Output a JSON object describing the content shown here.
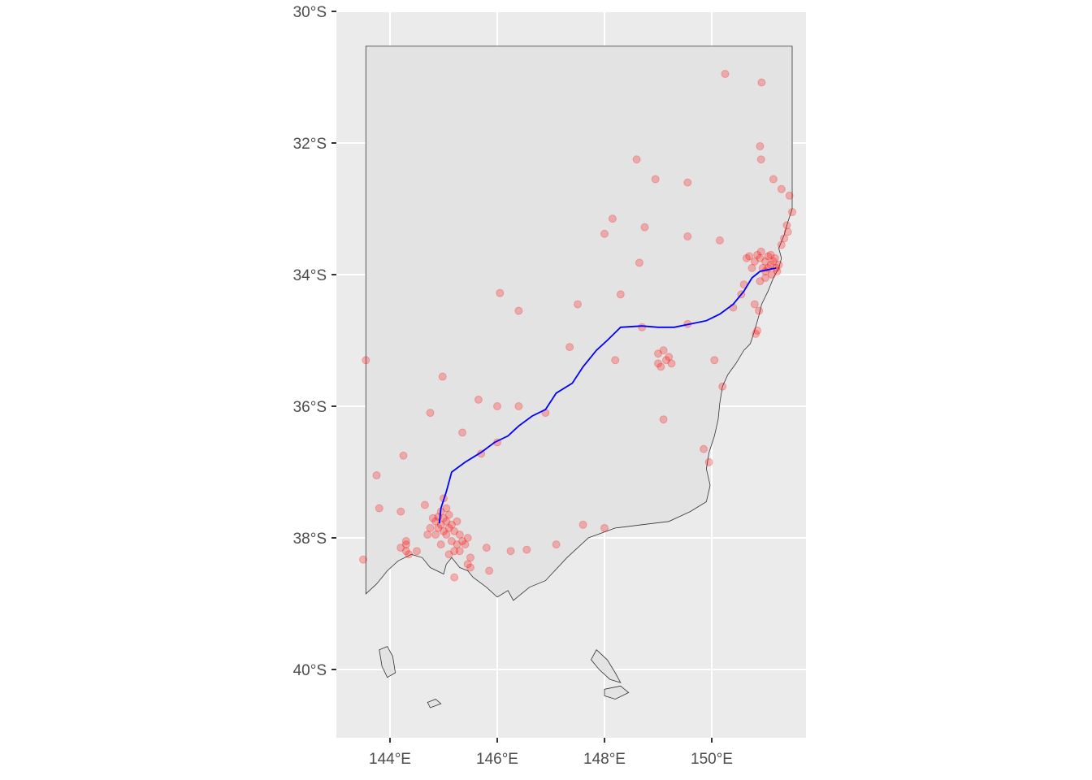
{
  "chart_data": {
    "type": "map",
    "title": "",
    "xlabel": "",
    "ylabel": "",
    "colors": {
      "panel_background": "#ebebeb",
      "state_fill": "#e3e3e3",
      "state_outline": "#333333",
      "gridline": "#ffffff",
      "points": "#ff0000",
      "route": "#0000ff"
    },
    "point_alpha": 0.25,
    "xlim": [
      143.2,
      152.0
    ],
    "ylim": [
      -41.3,
      -30.0
    ],
    "lon_ticks": [
      {
        "value": 144,
        "label": "144°E"
      },
      {
        "value": 146,
        "label": "146°E"
      },
      {
        "value": 148,
        "label": "148°E"
      },
      {
        "value": 150,
        "label": "150°E"
      }
    ],
    "lat_ticks": [
      {
        "value": -30,
        "label": "30°S"
      },
      {
        "value": -32,
        "label": "32°S"
      },
      {
        "value": -34,
        "label": "34°S"
      },
      {
        "value": -36,
        "label": "36°S"
      },
      {
        "value": -38,
        "label": "38°S"
      },
      {
        "value": -40,
        "label": "40°S"
      }
    ],
    "region_outline": [
      [
        143.55,
        -30.53
      ],
      [
        151.5,
        -30.53
      ],
      [
        151.5,
        -33.0
      ],
      [
        151.42,
        -33.2
      ],
      [
        151.35,
        -33.4
      ],
      [
        151.25,
        -33.6
      ],
      [
        151.3,
        -33.75
      ],
      [
        151.25,
        -33.9
      ],
      [
        151.15,
        -34.05
      ],
      [
        151.05,
        -34.25
      ],
      [
        150.93,
        -34.45
      ],
      [
        150.88,
        -34.62
      ],
      [
        150.8,
        -34.85
      ],
      [
        150.72,
        -35.05
      ],
      [
        150.6,
        -35.15
      ],
      [
        150.45,
        -35.35
      ],
      [
        150.3,
        -35.52
      ],
      [
        150.2,
        -35.7
      ],
      [
        150.15,
        -35.95
      ],
      [
        150.12,
        -36.2
      ],
      [
        150.05,
        -36.45
      ],
      [
        149.95,
        -36.7
      ],
      [
        149.9,
        -36.95
      ],
      [
        149.97,
        -37.2
      ],
      [
        149.9,
        -37.45
      ],
      [
        149.6,
        -37.6
      ],
      [
        149.2,
        -37.75
      ],
      [
        148.7,
        -37.8
      ],
      [
        148.2,
        -37.85
      ],
      [
        147.7,
        -38.0
      ],
      [
        147.3,
        -38.3
      ],
      [
        146.9,
        -38.65
      ],
      [
        146.6,
        -38.75
      ],
      [
        146.45,
        -38.85
      ],
      [
        146.3,
        -38.95
      ],
      [
        146.2,
        -38.8
      ],
      [
        146.0,
        -38.9
      ],
      [
        145.8,
        -38.75
      ],
      [
        145.55,
        -38.6
      ],
      [
        145.45,
        -38.5
      ],
      [
        145.3,
        -38.45
      ],
      [
        145.15,
        -38.3
      ],
      [
        145.05,
        -38.4
      ],
      [
        145.0,
        -38.55
      ],
      [
        144.75,
        -38.45
      ],
      [
        144.6,
        -38.3
      ],
      [
        144.4,
        -38.25
      ],
      [
        144.15,
        -38.35
      ],
      [
        143.95,
        -38.5
      ],
      [
        143.75,
        -38.7
      ],
      [
        143.55,
        -38.85
      ],
      [
        143.55,
        -30.53
      ]
    ],
    "islands": [
      [
        [
          143.8,
          -39.7
        ],
        [
          143.95,
          -39.65
        ],
        [
          144.05,
          -39.8
        ],
        [
          144.1,
          -40.05
        ],
        [
          143.95,
          -40.12
        ],
        [
          143.85,
          -39.95
        ],
        [
          143.8,
          -39.7
        ]
      ],
      [
        [
          147.85,
          -39.7
        ],
        [
          148.05,
          -39.85
        ],
        [
          148.2,
          -40.05
        ],
        [
          148.3,
          -40.2
        ],
        [
          148.1,
          -40.15
        ],
        [
          147.9,
          -40.0
        ],
        [
          147.75,
          -39.85
        ],
        [
          147.85,
          -39.7
        ]
      ],
      [
        [
          148.0,
          -40.3
        ],
        [
          148.3,
          -40.25
        ],
        [
          148.45,
          -40.35
        ],
        [
          148.2,
          -40.45
        ],
        [
          148.0,
          -40.4
        ],
        [
          148.0,
          -40.3
        ]
      ],
      [
        [
          144.7,
          -40.5
        ],
        [
          144.85,
          -40.45
        ],
        [
          144.95,
          -40.52
        ],
        [
          144.75,
          -40.58
        ],
        [
          144.7,
          -40.5
        ]
      ]
    ],
    "route": [
      [
        144.92,
        -37.78
      ],
      [
        144.95,
        -37.55
      ],
      [
        145.05,
        -37.3
      ],
      [
        145.15,
        -37.0
      ],
      [
        145.4,
        -36.85
      ],
      [
        145.7,
        -36.7
      ],
      [
        145.95,
        -36.55
      ],
      [
        146.2,
        -36.45
      ],
      [
        146.4,
        -36.3
      ],
      [
        146.65,
        -36.15
      ],
      [
        146.9,
        -36.05
      ],
      [
        147.1,
        -35.8
      ],
      [
        147.4,
        -35.65
      ],
      [
        147.6,
        -35.4
      ],
      [
        147.85,
        -35.15
      ],
      [
        148.05,
        -35.0
      ],
      [
        148.3,
        -34.8
      ],
      [
        148.7,
        -34.78
      ],
      [
        149.0,
        -34.8
      ],
      [
        149.3,
        -34.8
      ],
      [
        149.6,
        -34.75
      ],
      [
        149.9,
        -34.7
      ],
      [
        150.15,
        -34.6
      ],
      [
        150.4,
        -34.45
      ],
      [
        150.6,
        -34.25
      ],
      [
        150.75,
        -34.05
      ],
      [
        150.9,
        -33.95
      ],
      [
        151.2,
        -33.9
      ]
    ],
    "points": [
      [
        150.25,
        -30.95
      ],
      [
        150.93,
        -31.08
      ],
      [
        150.9,
        -32.05
      ],
      [
        150.92,
        -32.25
      ],
      [
        151.15,
        -32.55
      ],
      [
        151.3,
        -32.7
      ],
      [
        151.45,
        -32.8
      ],
      [
        148.6,
        -32.25
      ],
      [
        148.95,
        -32.55
      ],
      [
        149.55,
        -32.6
      ],
      [
        148.15,
        -33.15
      ],
      [
        148.0,
        -33.38
      ],
      [
        148.75,
        -33.28
      ],
      [
        149.55,
        -33.42
      ],
      [
        150.15,
        -33.48
      ],
      [
        148.65,
        -33.82
      ],
      [
        148.3,
        -34.3
      ],
      [
        147.5,
        -34.45
      ],
      [
        146.05,
        -34.28
      ],
      [
        146.4,
        -34.55
      ],
      [
        143.55,
        -35.3
      ],
      [
        144.98,
        -35.55
      ],
      [
        145.65,
        -35.9
      ],
      [
        146.0,
        -36.0
      ],
      [
        146.4,
        -36.0
      ],
      [
        147.35,
        -35.1
      ],
      [
        148.2,
        -35.3
      ],
      [
        148.7,
        -34.8
      ],
      [
        149.55,
        -34.75
      ],
      [
        150.4,
        -34.5
      ],
      [
        150.2,
        -35.7
      ],
      [
        150.05,
        -35.3
      ],
      [
        149.1,
        -36.2
      ],
      [
        149.85,
        -36.65
      ],
      [
        149.95,
        -36.85
      ],
      [
        144.75,
        -36.1
      ],
      [
        145.35,
        -36.4
      ],
      [
        145.7,
        -36.72
      ],
      [
        146.0,
        -36.55
      ],
      [
        146.9,
        -36.1
      ],
      [
        144.25,
        -36.75
      ],
      [
        143.75,
        -37.05
      ],
      [
        143.8,
        -37.55
      ],
      [
        144.2,
        -37.6
      ],
      [
        144.65,
        -37.5
      ],
      [
        147.6,
        -37.8
      ],
      [
        148.0,
        -37.85
      ],
      [
        145.8,
        -38.15
      ],
      [
        146.25,
        -38.2
      ],
      [
        146.55,
        -38.18
      ],
      [
        147.1,
        -38.1
      ],
      [
        145.85,
        -38.5
      ],
      [
        143.5,
        -38.33
      ],
      [
        144.3,
        -38.1
      ],
      [
        144.3,
        -38.2
      ],
      [
        145.5,
        -38.45
      ],
      [
        145.2,
        -38.6
      ],
      [
        149.0,
        -35.2
      ],
      [
        149.15,
        -35.3
      ],
      [
        149.05,
        -35.4
      ],
      [
        149.2,
        -35.25
      ],
      [
        149.1,
        -35.15
      ],
      [
        149.0,
        -35.35
      ],
      [
        149.25,
        -35.35
      ],
      [
        150.8,
        -34.45
      ],
      [
        150.88,
        -34.55
      ],
      [
        150.85,
        -34.85
      ],
      [
        150.82,
        -34.9
      ],
      [
        151.5,
        -33.05
      ],
      [
        151.4,
        -33.25
      ],
      [
        151.35,
        -33.45
      ],
      [
        151.42,
        -33.35
      ],
      [
        151.3,
        -33.55
      ],
      [
        150.7,
        -33.72
      ],
      [
        150.8,
        -33.8
      ],
      [
        150.9,
        -33.75
      ],
      [
        151.0,
        -33.8
      ],
      [
        151.05,
        -33.72
      ],
      [
        151.1,
        -33.85
      ],
      [
        151.15,
        -33.8
      ],
      [
        151.2,
        -33.9
      ],
      [
        150.95,
        -33.9
      ],
      [
        150.85,
        -33.7
      ],
      [
        151.0,
        -33.95
      ],
      [
        151.1,
        -33.7
      ],
      [
        151.18,
        -33.75
      ],
      [
        150.75,
        -33.9
      ],
      [
        150.65,
        -33.75
      ],
      [
        151.22,
        -33.95
      ],
      [
        150.92,
        -33.65
      ],
      [
        151.05,
        -33.9
      ],
      [
        151.0,
        -34.05
      ],
      [
        150.9,
        -34.1
      ],
      [
        151.12,
        -34.0
      ],
      [
        150.6,
        -34.15
      ],
      [
        150.55,
        -34.3
      ],
      [
        151.25,
        -33.85
      ],
      [
        144.85,
        -37.75
      ],
      [
        144.95,
        -37.8
      ],
      [
        145.05,
        -37.75
      ],
      [
        145.1,
        -37.85
      ],
      [
        145.0,
        -37.7
      ],
      [
        144.9,
        -37.85
      ],
      [
        145.2,
        -37.9
      ],
      [
        145.15,
        -37.8
      ],
      [
        144.8,
        -37.7
      ],
      [
        145.25,
        -37.75
      ],
      [
        145.3,
        -37.95
      ],
      [
        145.05,
        -37.95
      ],
      [
        144.75,
        -37.85
      ],
      [
        145.1,
        -37.65
      ],
      [
        144.95,
        -37.6
      ],
      [
        145.35,
        -38.05
      ],
      [
        145.4,
        -38.1
      ],
      [
        145.15,
        -38.05
      ],
      [
        144.85,
        -37.95
      ],
      [
        145.0,
        -37.9
      ],
      [
        145.2,
        -38.2
      ],
      [
        145.45,
        -38.0
      ],
      [
        144.7,
        -37.95
      ],
      [
        145.25,
        -38.1
      ],
      [
        145.3,
        -38.2
      ],
      [
        145.1,
        -38.25
      ],
      [
        144.95,
        -38.1
      ],
      [
        145.05,
        -37.55
      ],
      [
        145.0,
        -37.4
      ],
      [
        144.9,
        -37.68
      ],
      [
        144.3,
        -38.05
      ],
      [
        144.2,
        -38.15
      ],
      [
        144.35,
        -38.25
      ],
      [
        144.5,
        -38.2
      ],
      [
        145.45,
        -38.4
      ],
      [
        145.5,
        -38.3
      ]
    ]
  }
}
